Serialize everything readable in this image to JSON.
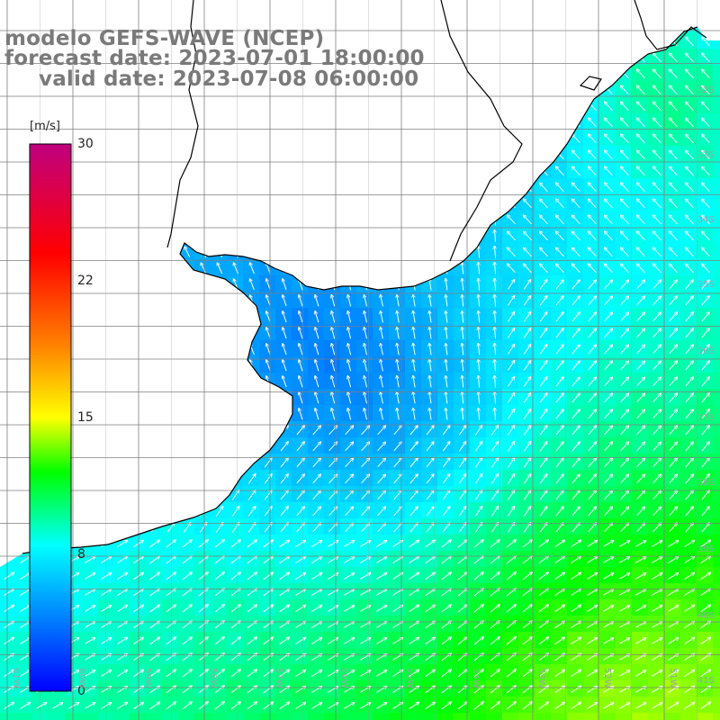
{
  "title": {
    "line1": "modelo GEFS-WAVE (NCEP)",
    "line2": "forecast date: 2023-07-01 18:00:00",
    "line3": "valid date: 2023-07-08 06:00:00"
  },
  "colorbar": {
    "unit": "[m/s]",
    "min": 0,
    "max": 30,
    "ticks": [
      "30",
      "22",
      "15",
      "8",
      "0"
    ],
    "tick_values": [
      30,
      22,
      15,
      8,
      0
    ],
    "stops": [
      {
        "v": 0,
        "c": "#0000ff"
      },
      {
        "v": 4,
        "c": "#0080ff"
      },
      {
        "v": 8,
        "c": "#00ffff"
      },
      {
        "v": 12,
        "c": "#00ff00"
      },
      {
        "v": 15,
        "c": "#ffff00"
      },
      {
        "v": 19,
        "c": "#ff8000"
      },
      {
        "v": 24,
        "c": "#ff0000"
      },
      {
        "v": 30,
        "c": "#c00080"
      }
    ]
  },
  "axes": {
    "lon_labels": [
      "61W",
      "60W",
      "59W",
      "58W",
      "57W",
      "56W",
      "55W",
      "54W",
      "53W",
      "52W",
      "51W"
    ],
    "lat_labels": [
      "32S",
      "33S",
      "34S",
      "35S",
      "36S",
      "37S",
      "38S",
      "39S",
      "40S",
      "41S"
    ]
  },
  "colors": {
    "land": "#ffffff",
    "grid": "#7f7f7f",
    "coast": "#000000",
    "arrow": "#ffffff",
    "title_text": "#7a7a7a",
    "axis_label": "#9aa4ad"
  },
  "field": {
    "variable": "wind speed with direction arrows",
    "typical_range_ms": [
      3,
      13
    ],
    "dominant_direction": "southwesterly (arrows pointing north-east)"
  }
}
